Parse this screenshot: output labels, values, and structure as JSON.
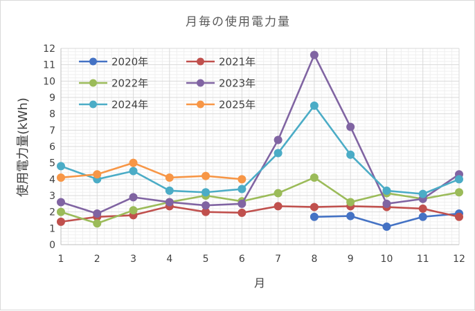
{
  "chart_data": {
    "type": "line",
    "title": "月毎の使用電力量",
    "xlabel": "月",
    "ylabel": "使用電力量(kWh)",
    "x": [
      1,
      2,
      3,
      4,
      5,
      6,
      7,
      8,
      9,
      10,
      11,
      12
    ],
    "ylim": [
      0,
      12
    ],
    "yticks": [
      0,
      1,
      2,
      3,
      4,
      5,
      6,
      7,
      8,
      9,
      10,
      11,
      12
    ],
    "grid": true,
    "legend_position": "top-left",
    "series": [
      {
        "name": "2020年",
        "color": "#4472C4",
        "values": [
          null,
          null,
          null,
          null,
          null,
          null,
          null,
          1.7,
          1.75,
          1.1,
          1.7,
          1.9
        ]
      },
      {
        "name": "2021年",
        "color": "#C0504D",
        "values": [
          1.4,
          1.7,
          1.8,
          2.35,
          2.0,
          1.95,
          2.35,
          2.3,
          2.35,
          2.3,
          2.2,
          1.7
        ]
      },
      {
        "name": "2022年",
        "color": "#9BBB59",
        "values": [
          2.0,
          1.3,
          2.1,
          2.6,
          3.0,
          2.65,
          3.15,
          4.1,
          2.6,
          3.15,
          2.8,
          3.2
        ]
      },
      {
        "name": "2023年",
        "color": "#8064A2",
        "values": [
          2.6,
          1.9,
          2.9,
          2.6,
          2.4,
          2.5,
          6.4,
          11.6,
          7.2,
          2.5,
          2.8,
          4.3
        ]
      },
      {
        "name": "2024年",
        "color": "#4BACC6",
        "values": [
          4.8,
          4.0,
          4.5,
          3.3,
          3.2,
          3.4,
          5.6,
          8.5,
          5.5,
          3.3,
          3.1,
          4.0
        ]
      },
      {
        "name": "2025年",
        "color": "#F79646",
        "values": [
          4.1,
          4.3,
          5.0,
          4.1,
          4.2,
          4.0,
          null,
          null,
          null,
          null,
          null,
          null
        ]
      }
    ]
  }
}
